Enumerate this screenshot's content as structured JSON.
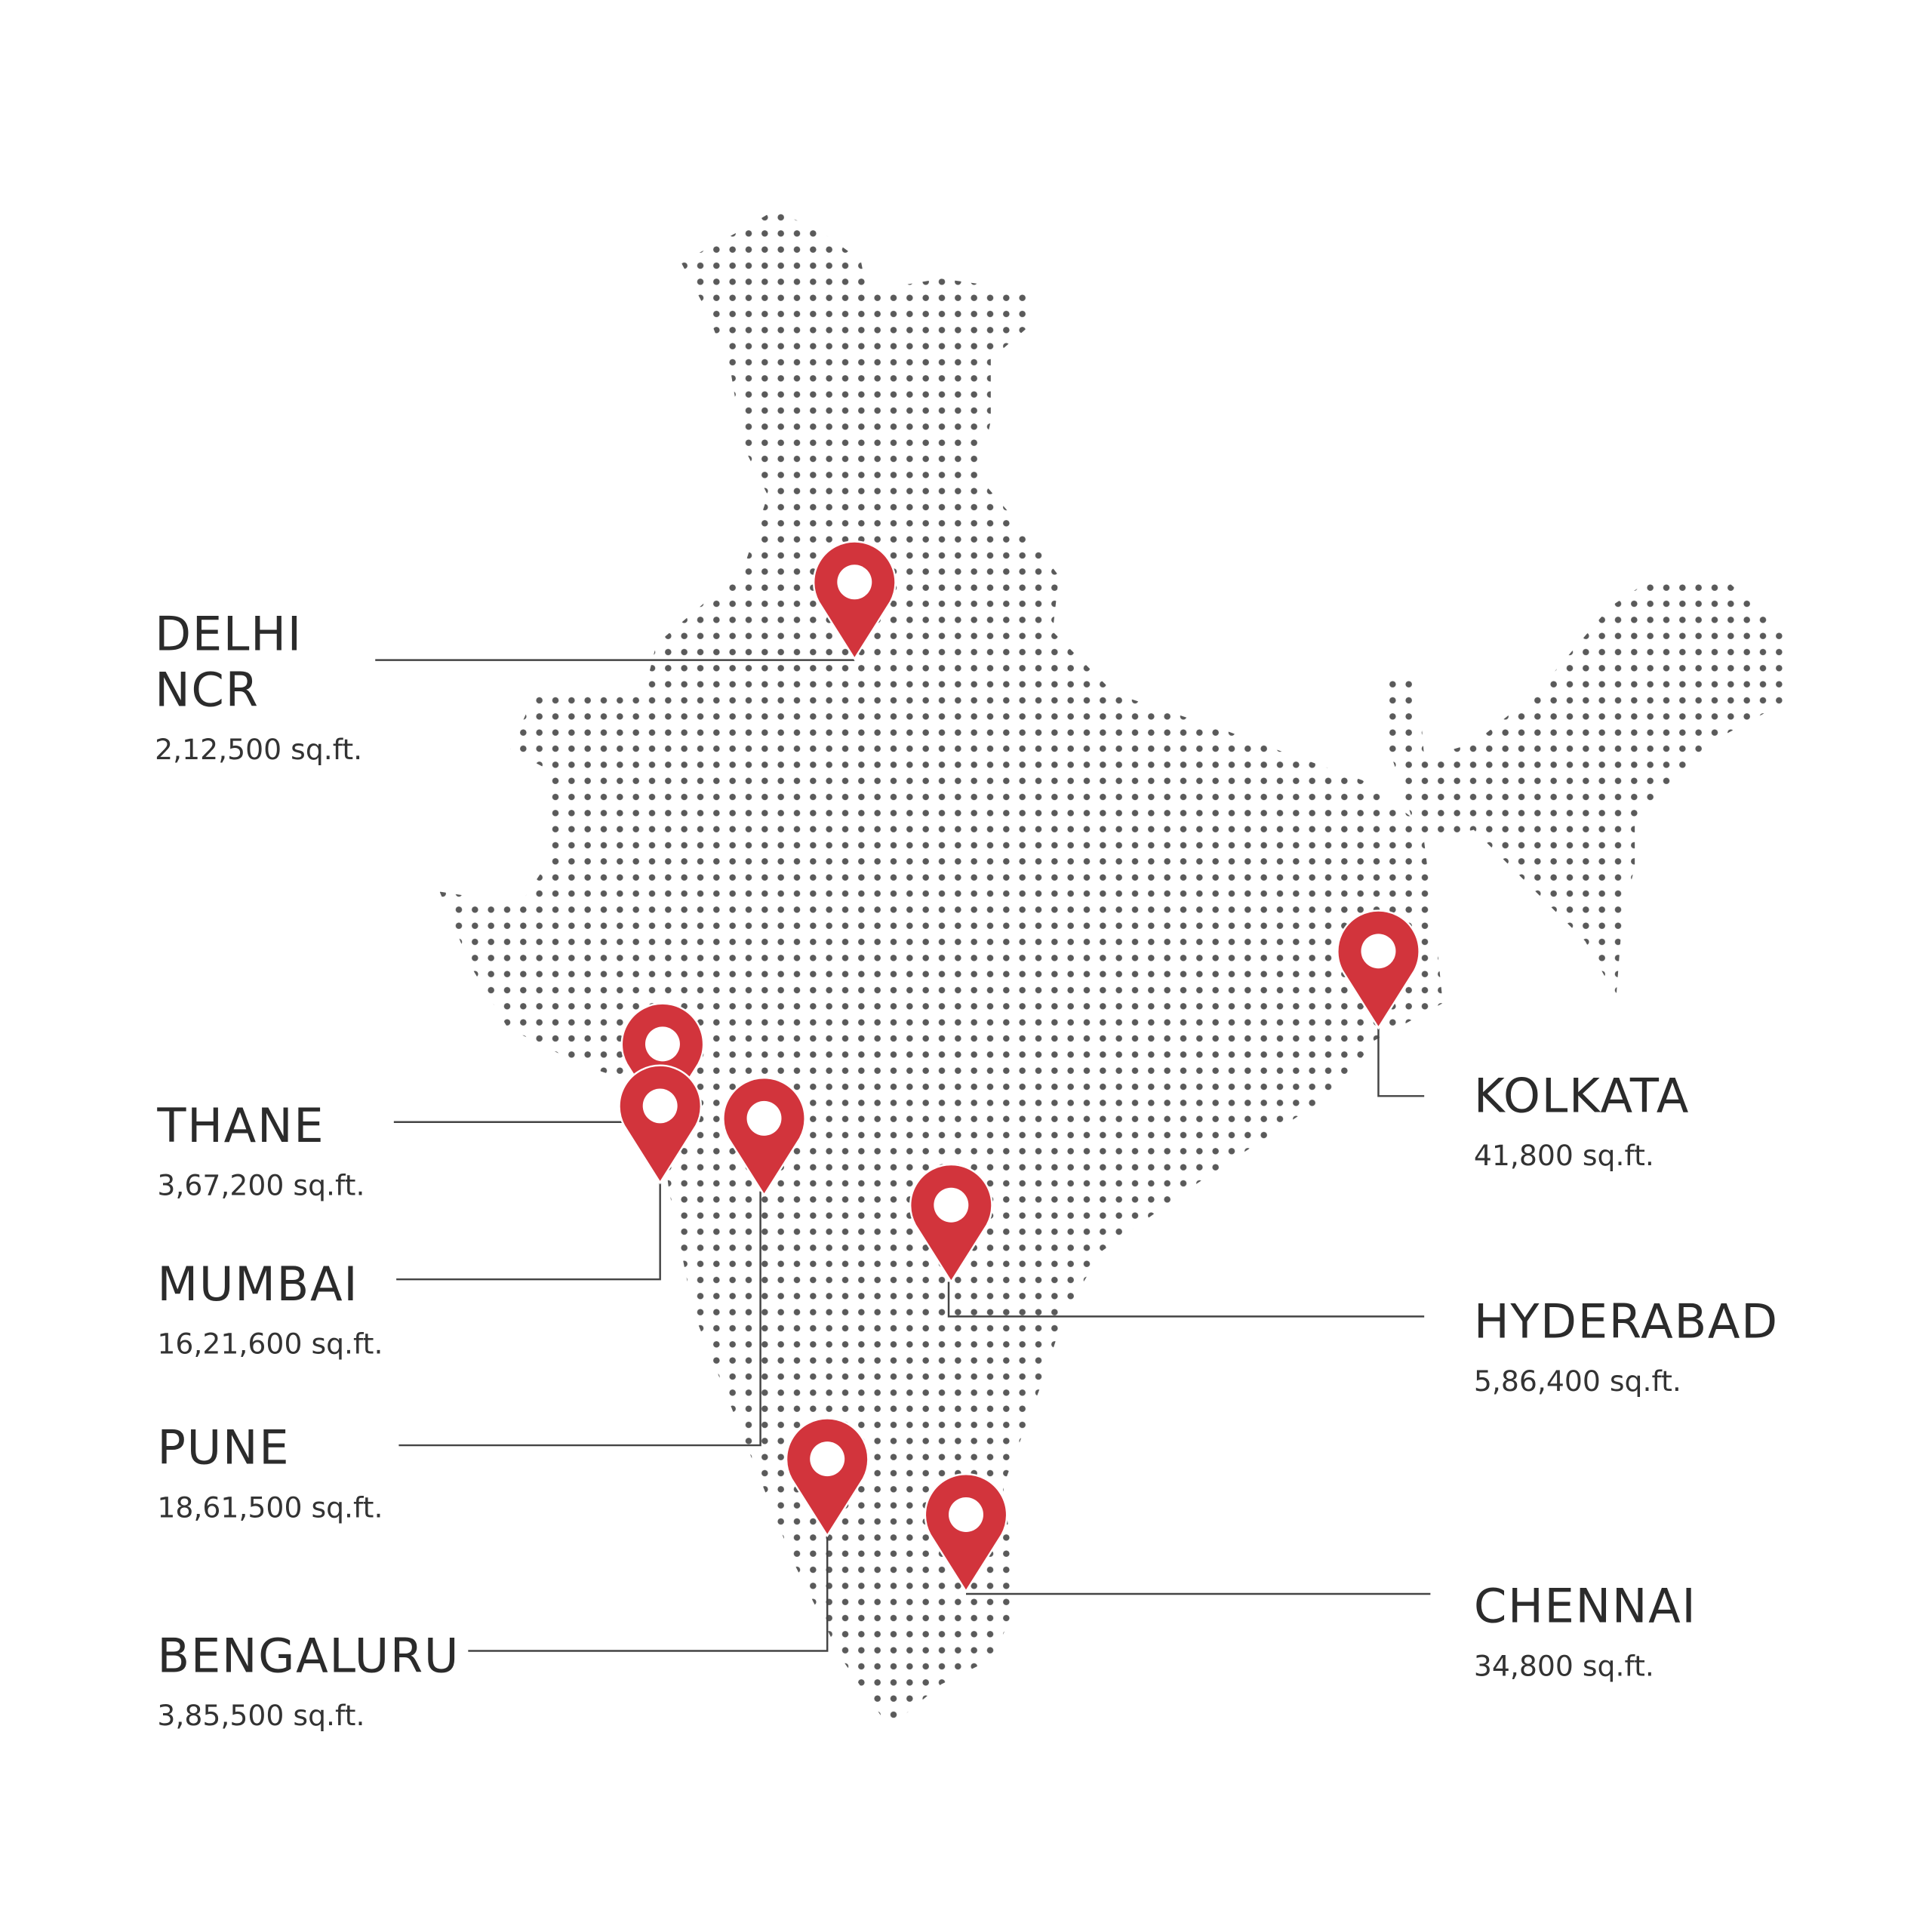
{
  "locations": [
    {
      "name": [
        "DELHI",
        "NCR"
      ],
      "area": "2,12,500 sq.ft."
    },
    {
      "name": [
        "THANE"
      ],
      "area": "3,67,200 sq.ft."
    },
    {
      "name": [
        "MUMBAI"
      ],
      "area": "16,21,600 sq.ft."
    },
    {
      "name": [
        "PUNE"
      ],
      "area": "18,61,500 sq.ft."
    },
    {
      "name": [
        "BENGALURU"
      ],
      "area": "3,85,500 sq.ft."
    },
    {
      "name": [
        "KOLKATA"
      ],
      "area": "41,800 sq.ft."
    },
    {
      "name": [
        "HYDERABAD"
      ],
      "area": "5,86,400 sq.ft."
    },
    {
      "name": [
        "CHENNAI"
      ],
      "area": "34,800 sq.ft."
    }
  ]
}
